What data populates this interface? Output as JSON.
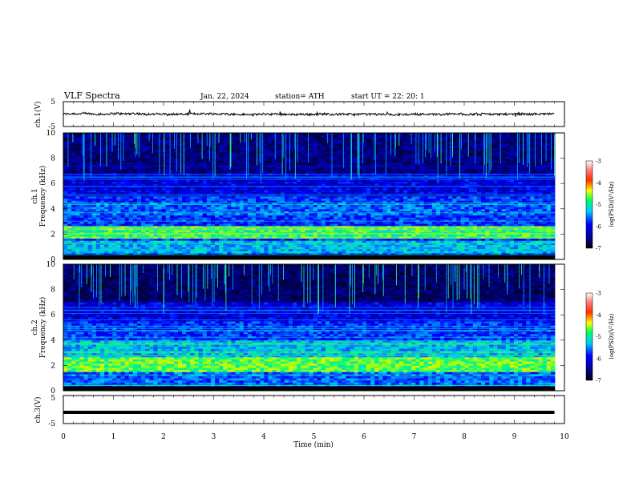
{
  "header": {
    "title": "VLF  Spectra",
    "date": "Jan. 22, 2024",
    "station": "station= ATH",
    "start": "start  UT  =    22: 20: 1"
  },
  "chart_data": [
    {
      "type": "line",
      "name": "ch1-waveform",
      "ylabel": "ch.1(V)",
      "ylim": [
        -5,
        5
      ],
      "yticks": [
        "5",
        "-5"
      ],
      "x_range_min": [
        0,
        9.8
      ],
      "approx_level_v": 0
    },
    {
      "type": "heatmap",
      "name": "ch1-spectrogram",
      "ylabel_line1": "ch.1",
      "ylabel_line2": "Frequency (kHz)",
      "ylim": [
        0,
        10
      ],
      "yticks": [
        "0",
        "2",
        "4",
        "6",
        "8",
        "10"
      ],
      "colorbar": {
        "label": "log(PSD)(V²/Hz)",
        "ticks": [
          "-3",
          "-4",
          "-5",
          "-6",
          "-7"
        ],
        "range": [
          -7,
          -3
        ]
      }
    },
    {
      "type": "heatmap",
      "name": "ch2-spectrogram",
      "ylabel_line1": "ch.2",
      "ylabel_line2": "Frequency (kHz)",
      "ylim": [
        0,
        10
      ],
      "yticks": [
        "0",
        "2",
        "4",
        "6",
        "8",
        "10"
      ],
      "colorbar": {
        "label": "log(PSD)(V²/Hz)",
        "ticks": [
          "-3",
          "-4",
          "-5",
          "-6",
          "-7"
        ],
        "range": [
          -7,
          -3
        ]
      }
    },
    {
      "type": "line",
      "name": "ch3-waveform",
      "ylabel": "ch.3(V)",
      "ylim": [
        -5,
        5
      ],
      "yticks": [
        "5",
        "-5"
      ],
      "x_range_min": [
        0,
        9.8
      ],
      "approx_level_v": -1
    }
  ],
  "xaxis": {
    "label": "Time  (min)",
    "ticks": [
      "0",
      "1",
      "2",
      "3",
      "4",
      "5",
      "6",
      "7",
      "8",
      "9",
      "10"
    ],
    "range": [
      0,
      10
    ]
  },
  "colors": {
    "spectrum": [
      "#000080",
      "#0000ff",
      "#00ffff",
      "#00ff00",
      "#ffff00",
      "#ff0000",
      "#ffffff"
    ]
  }
}
